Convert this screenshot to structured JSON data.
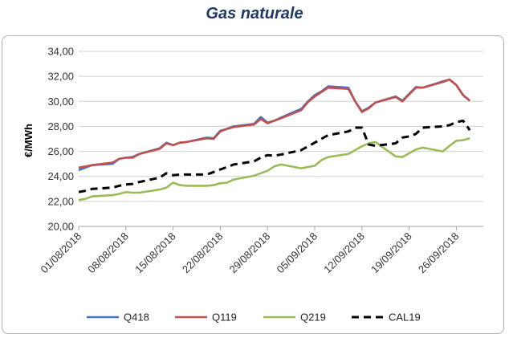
{
  "chart_data": {
    "type": "line",
    "title": "Gas naturale",
    "ylabel": "€/MWh",
    "xlabel": "",
    "ylim": [
      20,
      34
    ],
    "yticks": [
      "20,00",
      "22,00",
      "24,00",
      "26,00",
      "28,00",
      "30,00",
      "32,00",
      "34,00"
    ],
    "xticks": [
      "01/08/2018",
      "08/08/2018",
      "15/08/2018",
      "22/08/2018",
      "29/08/2018",
      "05/09/2018",
      "12/09/2018",
      "19/09/2018",
      "26/09/2018"
    ],
    "grid": "horizontal",
    "legend": "bottom",
    "x": [
      "01/08/2018",
      "02/08/2018",
      "03/08/2018",
      "06/08/2018",
      "07/08/2018",
      "08/08/2018",
      "09/08/2018",
      "10/08/2018",
      "13/08/2018",
      "14/08/2018",
      "15/08/2018",
      "16/08/2018",
      "17/08/2018",
      "20/08/2018",
      "21/08/2018",
      "22/08/2018",
      "23/08/2018",
      "24/08/2018",
      "27/08/2018",
      "28/08/2018",
      "29/08/2018",
      "30/08/2018",
      "31/08/2018",
      "03/09/2018",
      "04/09/2018",
      "05/09/2018",
      "06/09/2018",
      "07/09/2018",
      "10/09/2018",
      "11/09/2018",
      "12/09/2018",
      "13/09/2018",
      "14/09/2018",
      "17/09/2018",
      "18/09/2018",
      "19/09/2018",
      "20/09/2018",
      "21/09/2018",
      "24/09/2018",
      "25/09/2018",
      "26/09/2018",
      "27/09/2018",
      "28/09/2018"
    ],
    "series": [
      {
        "name": "Q418",
        "color": "#4472c4",
        "dash": "solid",
        "values": [
          24.5,
          24.7,
          24.9,
          25.0,
          25.4,
          25.5,
          25.55,
          25.8,
          26.25,
          26.7,
          26.5,
          26.7,
          26.75,
          27.1,
          27.05,
          27.65,
          27.8,
          28.0,
          28.2,
          28.75,
          28.3,
          28.45,
          28.7,
          29.4,
          30.0,
          30.5,
          30.8,
          31.2,
          31.1,
          30.0,
          29.2,
          29.5,
          29.9,
          30.4,
          30.05,
          30.6,
          31.15,
          31.1,
          31.6,
          31.75,
          31.3,
          30.5,
          30.05
        ]
      },
      {
        "name": "Q119",
        "color": "#c0504d",
        "dash": "solid",
        "values": [
          24.7,
          24.8,
          24.9,
          25.1,
          25.4,
          25.5,
          25.5,
          25.8,
          26.2,
          26.65,
          26.5,
          26.7,
          26.75,
          27.05,
          27.0,
          27.6,
          27.8,
          27.95,
          28.15,
          28.6,
          28.25,
          28.45,
          28.65,
          29.3,
          29.95,
          30.4,
          30.75,
          31.1,
          31.0,
          30.0,
          29.15,
          29.45,
          29.9,
          30.35,
          30.0,
          30.55,
          31.1,
          31.1,
          31.55,
          31.75,
          31.3,
          30.5,
          30.05
        ]
      },
      {
        "name": "Q219",
        "color": "#9bbb59",
        "dash": "solid",
        "values": [
          22.1,
          22.2,
          22.4,
          22.5,
          22.6,
          22.75,
          22.7,
          22.7,
          22.95,
          23.1,
          23.5,
          23.3,
          23.25,
          23.25,
          23.3,
          23.45,
          23.5,
          23.75,
          24.05,
          24.25,
          24.45,
          24.8,
          24.95,
          24.65,
          24.75,
          24.85,
          25.3,
          25.55,
          25.8,
          26.1,
          26.4,
          26.65,
          26.75,
          25.6,
          25.55,
          25.85,
          26.15,
          26.3,
          26.0,
          26.45,
          26.85,
          26.9,
          27.05
        ]
      },
      {
        "name": "CAL19",
        "color": "#000000",
        "dash": "dashed",
        "values": [
          22.75,
          22.85,
          23.0,
          23.1,
          23.25,
          23.35,
          23.4,
          23.55,
          23.9,
          24.25,
          24.1,
          24.15,
          24.15,
          24.15,
          24.35,
          24.55,
          24.75,
          24.95,
          25.2,
          25.5,
          25.7,
          25.65,
          25.75,
          26.1,
          26.4,
          26.7,
          27.0,
          27.3,
          27.6,
          27.9,
          27.9,
          26.55,
          26.45,
          26.65,
          27.1,
          27.2,
          27.4,
          27.9,
          28.0,
          28.1,
          28.35,
          28.45,
          27.7
        ]
      }
    ]
  }
}
